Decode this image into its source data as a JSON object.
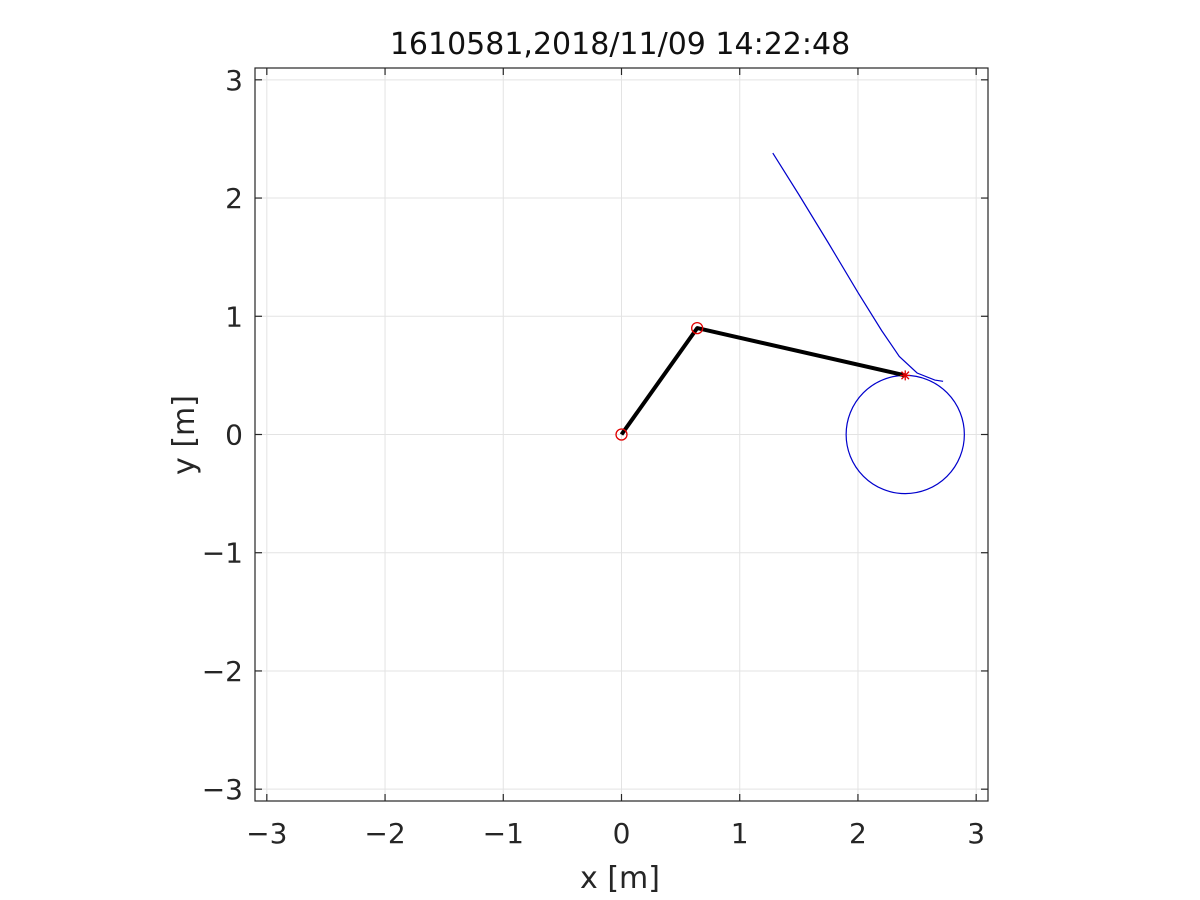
{
  "chart_data": {
    "type": "line",
    "title": "1610581,2018/11/09 14:22:48",
    "xlabel": "x [m]",
    "ylabel": "y [m]",
    "xlim": [
      -3.1,
      3.1
    ],
    "ylim": [
      -3.1,
      3.1
    ],
    "xticks": [
      -3,
      -2,
      -1,
      0,
      1,
      2,
      3
    ],
    "yticks": [
      -3,
      -2,
      -1,
      0,
      1,
      2,
      3
    ],
    "xtick_labels": [
      "−3",
      "−2",
      "−1",
      "0",
      "1",
      "2",
      "3"
    ],
    "ytick_labels": [
      "−3",
      "−2",
      "−1",
      "0",
      "1",
      "2",
      "3"
    ],
    "grid": true,
    "colors": {
      "arm": "#000000",
      "joint": "#e00000",
      "trajectory": "#0000cc",
      "target": "#e00000",
      "grid": "#e3e3e3",
      "axes": "#262626"
    },
    "series": [
      {
        "kind": "trajectory",
        "x": [
          1.28,
          1.5,
          1.75,
          2.0,
          2.2,
          2.35,
          2.5,
          2.65,
          2.72
        ],
        "y": [
          2.38,
          2.03,
          1.62,
          1.2,
          0.88,
          0.66,
          0.52,
          0.46,
          0.45
        ]
      },
      {
        "kind": "circle-trajectory",
        "center": [
          2.4,
          0.0
        ],
        "radius": 0.5
      },
      {
        "kind": "arm",
        "x": [
          0.0,
          0.64,
          2.4
        ],
        "y": [
          0.0,
          0.9,
          0.5
        ]
      },
      {
        "kind": "joints",
        "x": [
          0.0,
          0.64
        ],
        "y": [
          0.0,
          0.9
        ]
      },
      {
        "kind": "end-effector",
        "x": [
          2.4
        ],
        "y": [
          0.5
        ]
      }
    ]
  }
}
